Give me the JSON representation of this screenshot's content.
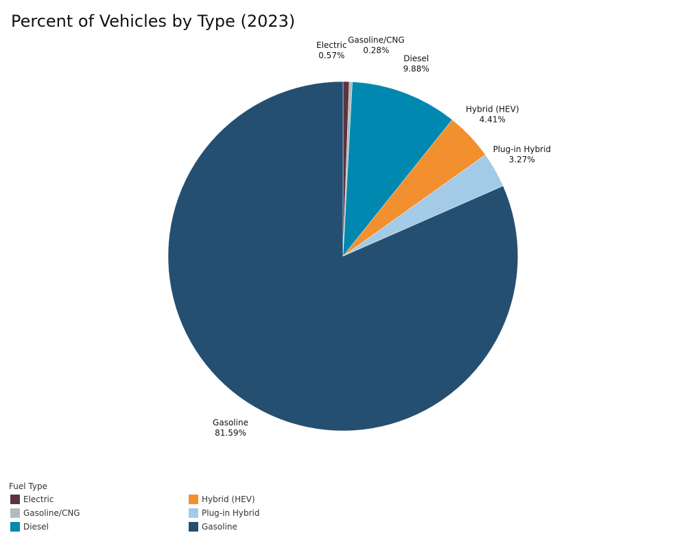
{
  "chart_data": {
    "type": "pie",
    "title": "Percent of Vehicles by Type (2023)",
    "legend_title": "Fuel Type",
    "legend_placement": "bottom-left",
    "slices": [
      {
        "name": "Electric",
        "value": 0.57,
        "label": "0.57%",
        "color": "#5a3440"
      },
      {
        "name": "Gasoline/CNG",
        "value": 0.28,
        "label": "0.28%",
        "color": "#b1bdbd"
      },
      {
        "name": "Diesel",
        "value": 9.88,
        "label": "9.88%",
        "color": "#0088b0"
      },
      {
        "name": "Hybrid (HEV)",
        "value": 4.41,
        "label": "4.41%",
        "color": "#f28f2e"
      },
      {
        "name": "Plug-in Hybrid",
        "value": 3.27,
        "label": "3.27%",
        "color": "#a3cbe8"
      },
      {
        "name": "Gasoline",
        "value": 81.59,
        "label": "81.59%",
        "color": "#254f71"
      }
    ]
  }
}
